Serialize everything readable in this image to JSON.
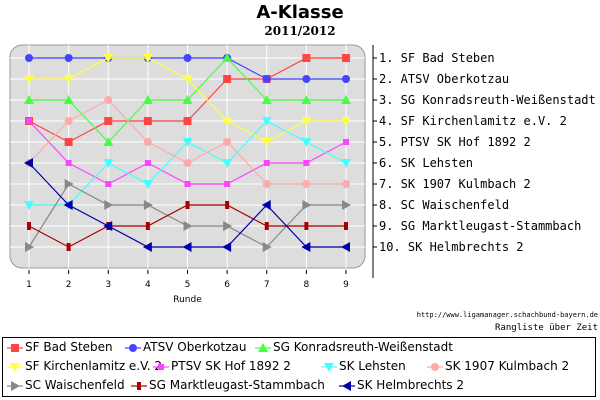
{
  "title": "A-Klasse",
  "subtitle": "2011/2012",
  "url": "http://www.ligamanager.schachbund-bayern.de",
  "note": "Rangliste über Zeit",
  "chart_data": {
    "type": "line",
    "xlabel": "Runde",
    "ylabel": "",
    "x": [
      1,
      2,
      3,
      4,
      5,
      6,
      7,
      8,
      9
    ],
    "ylim": [
      1,
      10
    ],
    "y_inverted": true,
    "grid": true,
    "legend_position": "bottom",
    "rank_labels": [
      "1. SF Bad Steben",
      "2. ATSV Oberkotzau",
      "3. SG Konradsreuth-Weißenstadt",
      "4. SF Kirchenlamitz e.V. 2",
      "5. PTSV SK Hof 1892 2",
      "6. SK Lehsten",
      "7. SK 1907 Kulmbach 2",
      "8. SC Waischenfeld",
      "9. SG Marktleugast-Stammbach",
      "10. SK Helmbrechts 2"
    ],
    "series": [
      {
        "name": "SF Bad Steben",
        "color": "#ff4444",
        "marker": "square",
        "values": [
          4,
          5,
          4,
          4,
          4,
          2,
          2,
          1,
          1
        ]
      },
      {
        "name": "ATSV Oberkotzau",
        "color": "#4444ff",
        "marker": "circle",
        "values": [
          1,
          1,
          1,
          1,
          1,
          1,
          2,
          2,
          2
        ]
      },
      {
        "name": "SG Konradsreuth-Weißenstadt",
        "color": "#44ff44",
        "marker": "triangle-up",
        "values": [
          3,
          3,
          5,
          3,
          3,
          1,
          3,
          3,
          3
        ]
      },
      {
        "name": "SF Kirchenlamitz e.V. 2",
        "color": "#ffff44",
        "marker": "triangle-down",
        "values": [
          2,
          2,
          1,
          1,
          2,
          4,
          5,
          4,
          4
        ]
      },
      {
        "name": "PTSV SK Hof 1892 2",
        "color": "#ff44ff",
        "marker": "square-small",
        "values": [
          4,
          6,
          7,
          6,
          7,
          7,
          6,
          6,
          5
        ]
      },
      {
        "name": "SK Lehsten",
        "color": "#44ffff",
        "marker": "triangle-down",
        "values": [
          8,
          8,
          6,
          7,
          5,
          6,
          4,
          5,
          6
        ]
      },
      {
        "name": "SK 1907 Kulmbach 2",
        "color": "#ffaaaa",
        "marker": "circle",
        "values": [
          6,
          4,
          3,
          5,
          6,
          5,
          7,
          7,
          7
        ]
      },
      {
        "name": "SC Waischenfeld",
        "color": "#888888",
        "marker": "triangle-right",
        "values": [
          10,
          7,
          8,
          8,
          9,
          9,
          10,
          8,
          8
        ]
      },
      {
        "name": "SG Marktleugast-Stammbach",
        "color": "#aa0000",
        "marker": "bar",
        "values": [
          9,
          10,
          9,
          9,
          8,
          8,
          9,
          9,
          9
        ]
      },
      {
        "name": "SK Helmbrechts 2",
        "color": "#0000aa",
        "marker": "triangle-left",
        "values": [
          6,
          8,
          9,
          10,
          10,
          10,
          8,
          10,
          10
        ]
      }
    ]
  }
}
